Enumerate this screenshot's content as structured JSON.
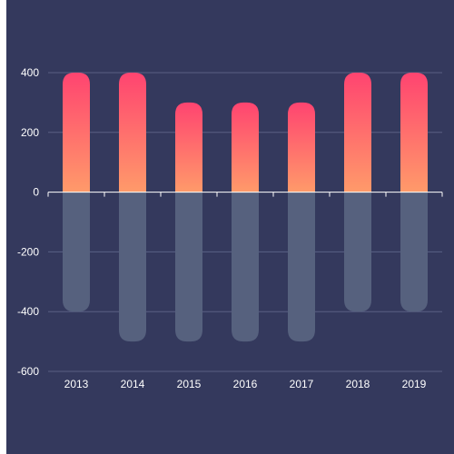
{
  "chart_data": {
    "type": "bar",
    "categories": [
      "2013",
      "2014",
      "2015",
      "2016",
      "2017",
      "2018",
      "2019"
    ],
    "series": [
      {
        "values": [
          400,
          400,
          300,
          300,
          300,
          400,
          400
        ]
      },
      {
        "values": [
          -400,
          -500,
          -500,
          -500,
          -500,
          -400,
          -400
        ]
      }
    ],
    "ylim": [
      -600,
      400
    ],
    "y_ticks": [
      400,
      200,
      0,
      -200,
      -400,
      -600
    ],
    "y_tick_labels": [
      "400",
      "200",
      "0",
      "-200",
      "-400",
      "-600"
    ],
    "grid": true,
    "colors": {
      "background": "#34395d",
      "positive_top": "#ff4470",
      "positive_bottom": "#ff9a6a",
      "negative": "#56617e",
      "grid": "#5a6084",
      "axis": "#ffffff",
      "text": "#ffffff"
    }
  }
}
